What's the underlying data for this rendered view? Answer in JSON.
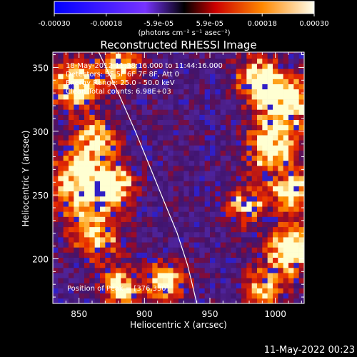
{
  "colorbar": {
    "tick_labels": [
      "-0.00030",
      "-0.00018",
      "-5.9e-05",
      "5.9e-05",
      "0.00018",
      "0.00030"
    ],
    "range": [
      -0.0003,
      0.0003
    ],
    "units_label": "(photons cm⁻² s⁻¹ asec⁻²)"
  },
  "chart_data": {
    "type": "heatmap",
    "title": "Reconstructed RHESSI Image",
    "xlabel": "Heliocentric X (arcsec)",
    "ylabel": "Heliocentric Y (arcsec)",
    "xlim": [
      830,
      1022
    ],
    "ylim": [
      165,
      362
    ],
    "x_ticks": [
      850,
      900,
      950,
      1000
    ],
    "y_ticks": [
      200,
      250,
      300,
      350
    ],
    "annotations": [
      "18-May-2012 11:38:16.000 to 11:44:16.000",
      "Detectors: 3F 5F 6F 7F 8F, Att 0",
      "Energy Range: 25.0 - 50.0 keV",
      "Clean    Total counts: 6.98E+03"
    ],
    "peak_label": "Position of Peak = [376,330]",
    "limb_curve": [
      [
        865,
        362
      ],
      [
        880,
        330
      ],
      [
        893,
        300
      ],
      [
        905,
        270
      ],
      [
        915,
        245
      ],
      [
        925,
        220
      ],
      [
        933,
        195
      ],
      [
        940,
        165
      ]
    ],
    "hot_regions": [
      [
        845,
        335,
        18,
        0.85
      ],
      [
        880,
        350,
        14,
        0.7
      ],
      [
        860,
        290,
        16,
        0.75
      ],
      [
        850,
        255,
        22,
        1.0
      ],
      [
        875,
        255,
        14,
        0.85
      ],
      [
        862,
        215,
        18,
        0.65
      ],
      [
        985,
        340,
        16,
        0.8
      ],
      [
        1005,
        320,
        20,
        0.9
      ],
      [
        995,
        285,
        18,
        0.85
      ],
      [
        1010,
        250,
        16,
        0.8
      ],
      [
        975,
        240,
        14,
        0.7
      ],
      [
        1010,
        205,
        18,
        0.95
      ],
      [
        880,
        175,
        14,
        0.75
      ],
      [
        915,
        180,
        14,
        0.8
      ],
      [
        990,
        175,
        14,
        0.7
      ]
    ]
  },
  "footer": {
    "timestamp": "11-May-2022 00:23"
  }
}
